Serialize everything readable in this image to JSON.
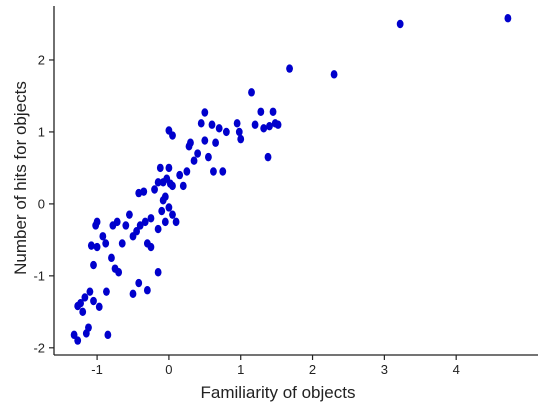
{
  "chart_data": {
    "type": "scatter",
    "title": "",
    "xlabel": "Familiarity of objects",
    "ylabel": "Number of hits for objects",
    "xlim": [
      -1.6,
      5.0
    ],
    "ylim": [
      -2.1,
      2.75
    ],
    "xticks": [
      -1,
      0,
      1,
      2,
      3,
      4
    ],
    "yticks": [
      -2,
      -1,
      0,
      1,
      2
    ],
    "xtick_labels": [
      "-1",
      "0",
      "1",
      "2",
      "3",
      "4"
    ],
    "ytick_labels": [
      "-2",
      "-1",
      "0",
      "1",
      "2"
    ],
    "grid": false,
    "legend": "none",
    "point_color": "#0000cc",
    "points": [
      {
        "x": -1.32,
        "y": -1.82
      },
      {
        "x": -1.27,
        "y": -1.9
      },
      {
        "x": -1.15,
        "y": -1.8
      },
      {
        "x": -1.12,
        "y": -1.72
      },
      {
        "x": -1.27,
        "y": -1.42
      },
      {
        "x": -1.23,
        "y": -1.38
      },
      {
        "x": -1.2,
        "y": -1.5
      },
      {
        "x": -1.17,
        "y": -1.3
      },
      {
        "x": -1.1,
        "y": -1.22
      },
      {
        "x": -1.05,
        "y": -1.35
      },
      {
        "x": -0.97,
        "y": -1.43
      },
      {
        "x": -0.85,
        "y": -1.82
      },
      {
        "x": -0.87,
        "y": -1.22
      },
      {
        "x": -1.05,
        "y": -0.85
      },
      {
        "x": -1.0,
        "y": -0.6
      },
      {
        "x": -1.08,
        "y": -0.58
      },
      {
        "x": -1.02,
        "y": -0.3
      },
      {
        "x": -1.0,
        "y": -0.25
      },
      {
        "x": -0.92,
        "y": -0.45
      },
      {
        "x": -0.88,
        "y": -0.55
      },
      {
        "x": -0.8,
        "y": -0.75
      },
      {
        "x": -0.75,
        "y": -0.9
      },
      {
        "x": -0.7,
        "y": -0.95
      },
      {
        "x": -0.78,
        "y": -0.3
      },
      {
        "x": -0.72,
        "y": -0.25
      },
      {
        "x": -0.65,
        "y": -0.55
      },
      {
        "x": -0.6,
        "y": -0.3
      },
      {
        "x": -0.55,
        "y": -0.15
      },
      {
        "x": -0.5,
        "y": -0.45
      },
      {
        "x": -0.45,
        "y": -0.38
      },
      {
        "x": -0.42,
        "y": 0.15
      },
      {
        "x": -0.35,
        "y": 0.17
      },
      {
        "x": -0.4,
        "y": -0.3
      },
      {
        "x": -0.33,
        "y": -0.25
      },
      {
        "x": -0.3,
        "y": -0.55
      },
      {
        "x": -0.25,
        "y": -0.2
      },
      {
        "x": -0.2,
        "y": 0.2
      },
      {
        "x": -0.15,
        "y": 0.3
      },
      {
        "x": -0.12,
        "y": 0.5
      },
      {
        "x": -0.1,
        "y": -0.1
      },
      {
        "x": -0.08,
        "y": 0.05
      },
      {
        "x": -0.05,
        "y": 0.1
      },
      {
        "x": -0.03,
        "y": 0.35
      },
      {
        "x": 0.0,
        "y": 0.5
      },
      {
        "x": 0.02,
        "y": 0.28
      },
      {
        "x": 0.05,
        "y": 0.25
      },
      {
        "x": 0.0,
        "y": -0.05
      },
      {
        "x": -0.05,
        "y": -0.25
      },
      {
        "x": -0.15,
        "y": -0.35
      },
      {
        "x": -0.25,
        "y": -0.6
      },
      {
        "x": -0.5,
        "y": -1.25
      },
      {
        "x": -0.42,
        "y": -1.1
      },
      {
        "x": -0.3,
        "y": -1.2
      },
      {
        "x": -0.15,
        "y": -0.95
      },
      {
        "x": 0.05,
        "y": -0.15
      },
      {
        "x": 0.1,
        "y": -0.25
      },
      {
        "x": 0.15,
        "y": 0.4
      },
      {
        "x": 0.2,
        "y": 0.25
      },
      {
        "x": 0.25,
        "y": 0.45
      },
      {
        "x": 0.28,
        "y": 0.8
      },
      {
        "x": 0.3,
        "y": 0.85
      },
      {
        "x": 0.35,
        "y": 0.6
      },
      {
        "x": 0.4,
        "y": 0.7
      },
      {
        "x": 0.45,
        "y": 1.12
      },
      {
        "x": 0.5,
        "y": 1.27
      },
      {
        "x": 0.5,
        "y": 0.88
      },
      {
        "x": 0.55,
        "y": 0.65
      },
      {
        "x": 0.6,
        "y": 1.1
      },
      {
        "x": 0.62,
        "y": 0.45
      },
      {
        "x": 0.65,
        "y": 0.85
      },
      {
        "x": 0.7,
        "y": 1.05
      },
      {
        "x": 0.75,
        "y": 0.45
      },
      {
        "x": 0.8,
        "y": 1.0
      },
      {
        "x": 0.95,
        "y": 1.12
      },
      {
        "x": 0.98,
        "y": 1.0
      },
      {
        "x": 1.0,
        "y": 0.9
      },
      {
        "x": 1.15,
        "y": 1.55
      },
      {
        "x": 1.2,
        "y": 1.1
      },
      {
        "x": 1.28,
        "y": 1.28
      },
      {
        "x": 1.32,
        "y": 1.05
      },
      {
        "x": 1.4,
        "y": 1.08
      },
      {
        "x": 1.38,
        "y": 0.65
      },
      {
        "x": 1.45,
        "y": 1.28
      },
      {
        "x": 1.48,
        "y": 1.12
      },
      {
        "x": 1.52,
        "y": 1.1
      },
      {
        "x": 1.68,
        "y": 1.88
      },
      {
        "x": 2.3,
        "y": 1.8
      },
      {
        "x": 3.22,
        "y": 2.5
      },
      {
        "x": 4.72,
        "y": 2.58
      },
      {
        "x": 0.0,
        "y": 1.02
      },
      {
        "x": 0.05,
        "y": 0.95
      },
      {
        "x": -0.08,
        "y": 0.3
      }
    ]
  }
}
